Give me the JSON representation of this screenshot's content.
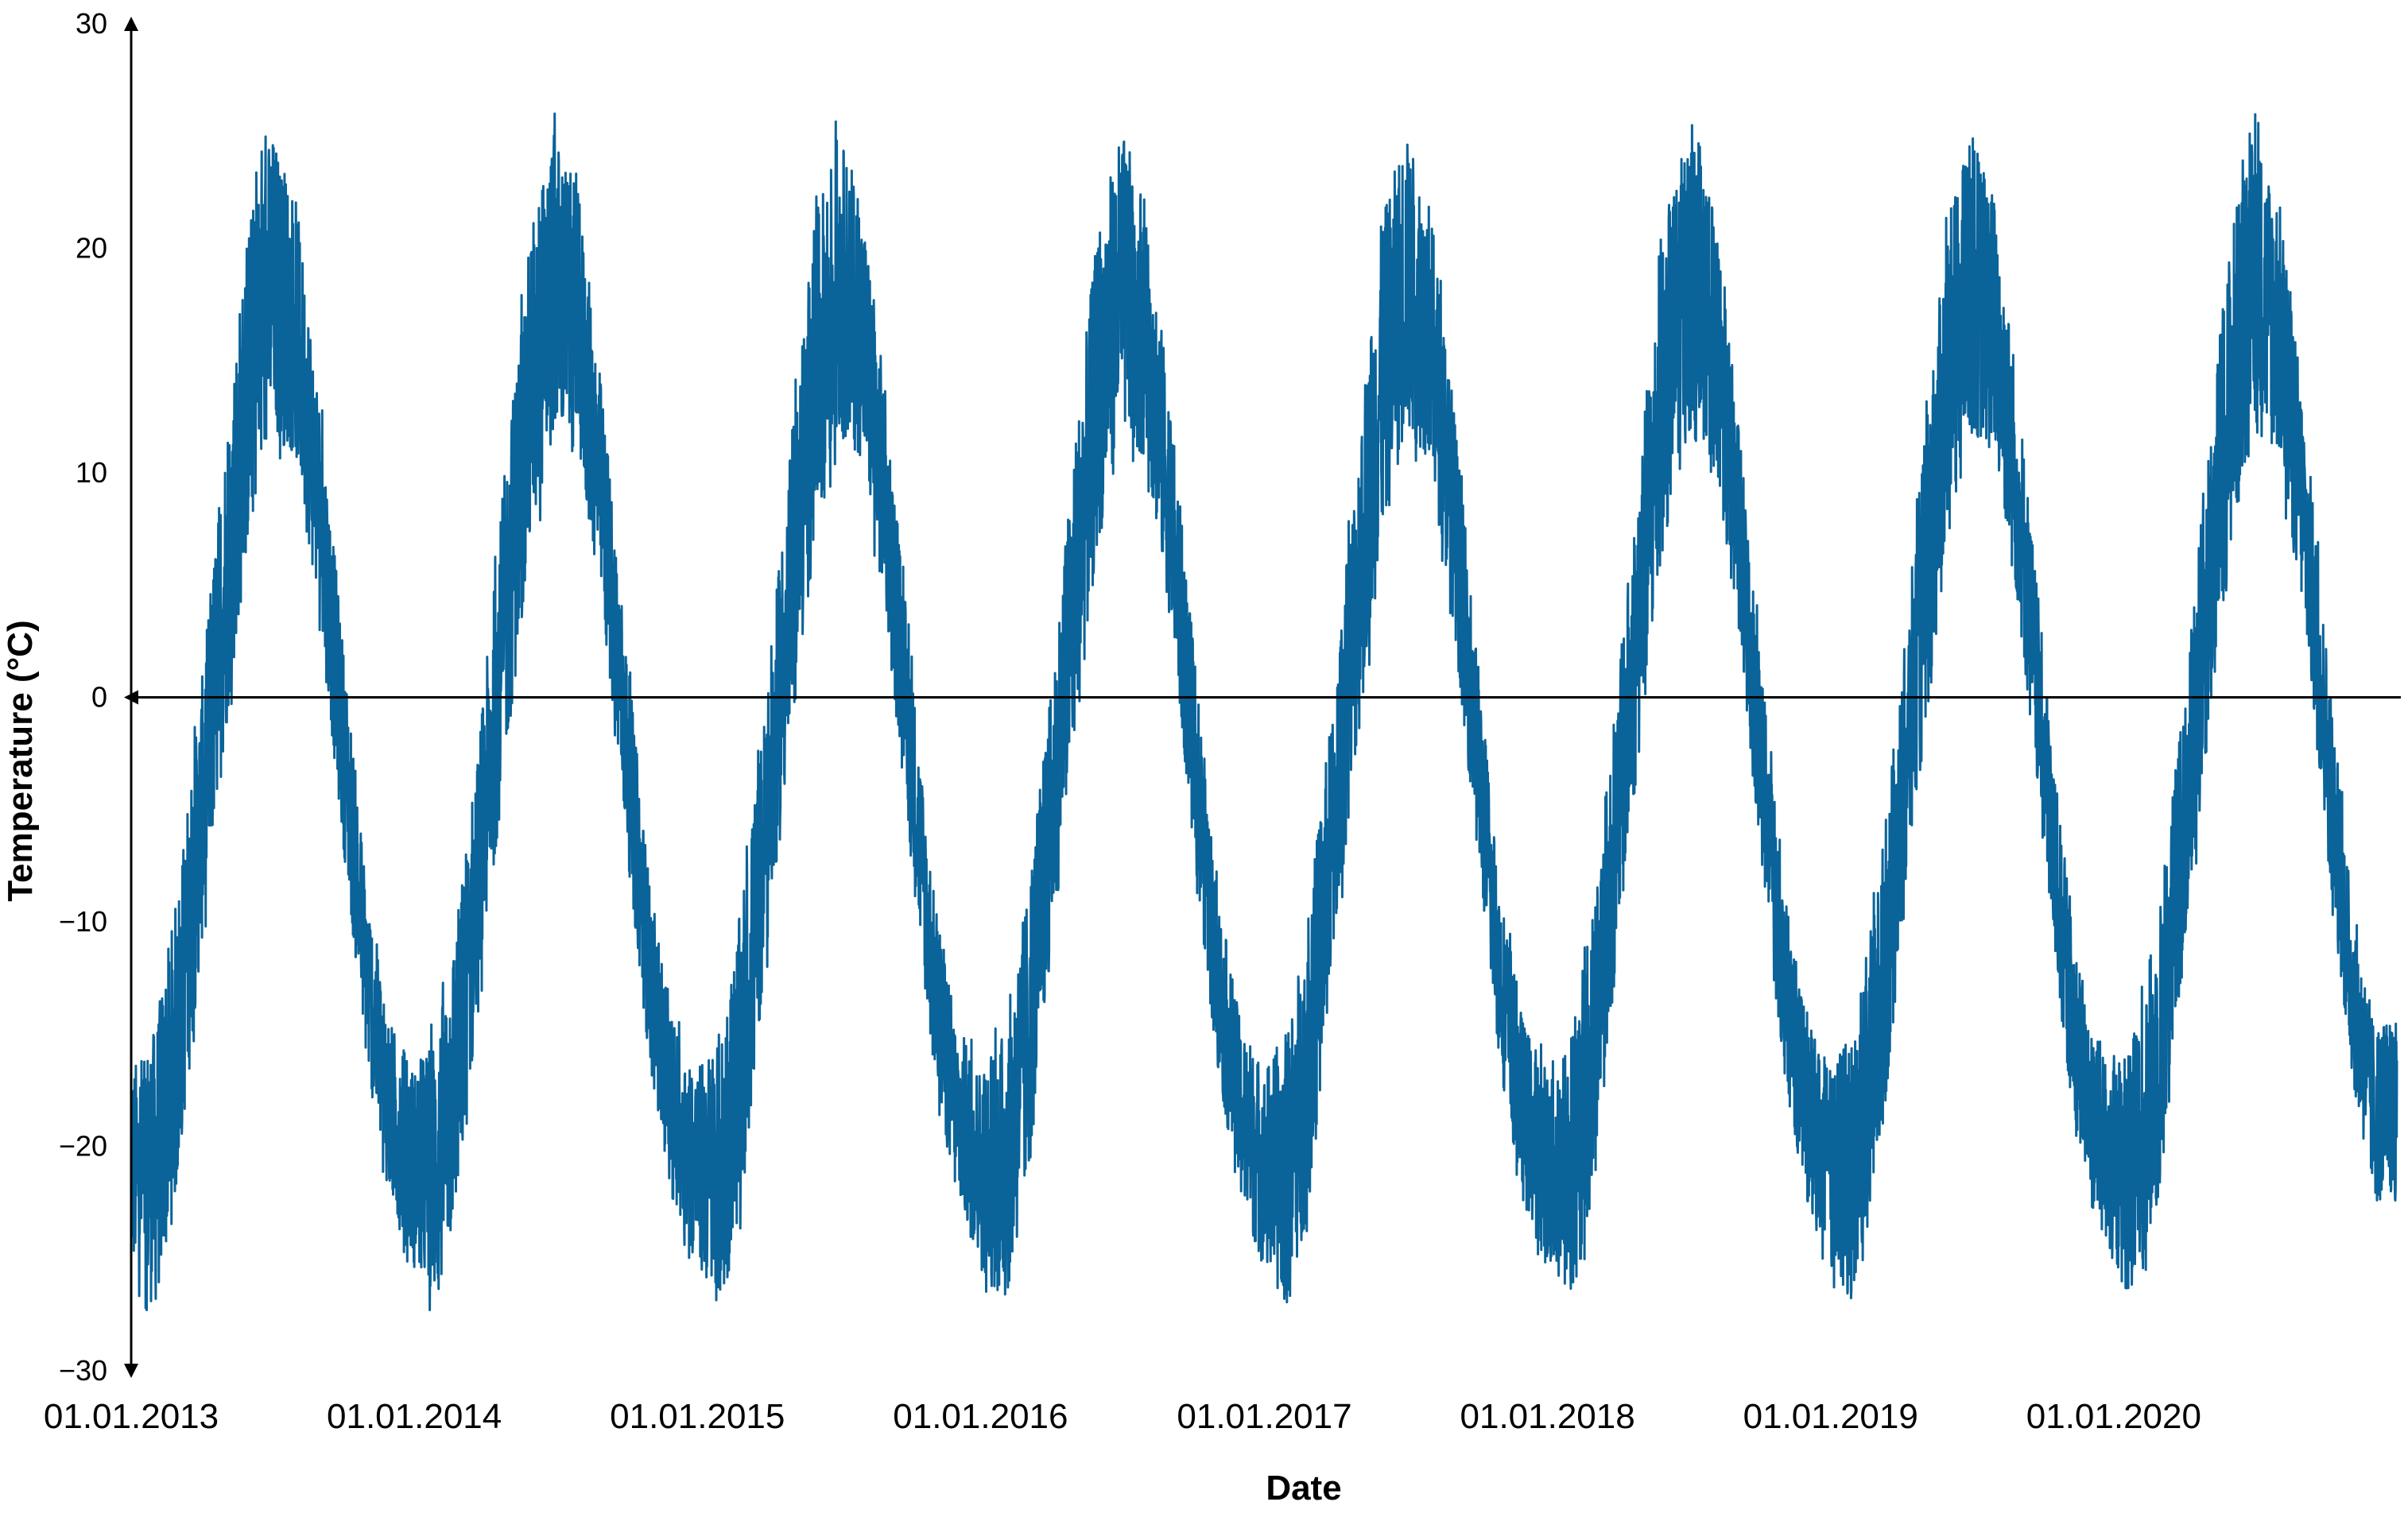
{
  "chart_data": {
    "type": "line",
    "title": "",
    "xlabel": "Date",
    "ylabel": "Temperature (°C)",
    "ylim": [
      -30,
      30
    ],
    "xlim": [
      "2013-01-01",
      "2020-12-31"
    ],
    "y_ticks": [
      {
        "value": 30,
        "label": "30"
      },
      {
        "value": 20,
        "label": "20"
      },
      {
        "value": 10,
        "label": "10"
      },
      {
        "value": 0,
        "label": "0"
      },
      {
        "value": -10,
        "label": "−10"
      },
      {
        "value": -20,
        "label": "−20"
      },
      {
        "value": -30,
        "label": "−30"
      }
    ],
    "x_ticks": [
      {
        "value": "2013-01-01",
        "label": "01.01.2013"
      },
      {
        "value": "2014-01-01",
        "label": "01.01.2014"
      },
      {
        "value": "2015-01-01",
        "label": "01.01.2015"
      },
      {
        "value": "2016-01-01",
        "label": "01.01.2016"
      },
      {
        "value": "2017-01-01",
        "label": "01.01.2017"
      },
      {
        "value": "2018-01-01",
        "label": "01.01.2018"
      },
      {
        "value": "2019-01-01",
        "label": "01.01.2019"
      },
      {
        "value": "2020-01-01",
        "label": "01.01.2020"
      }
    ],
    "grid": false,
    "legend": "none",
    "series": [
      {
        "color": "#0a6399",
        "x": [
          "2013-01-01",
          "2013-02-01",
          "2013-03-01",
          "2013-04-01",
          "2013-05-01",
          "2013-06-01",
          "2013-07-01",
          "2013-08-01",
          "2013-09-01",
          "2013-10-01",
          "2013-11-01",
          "2013-12-01",
          "2014-01-01",
          "2014-02-01",
          "2014-03-01",
          "2014-04-01",
          "2014-05-01",
          "2014-06-01",
          "2014-07-01",
          "2014-08-01",
          "2014-09-01",
          "2014-10-01",
          "2014-11-01",
          "2014-12-01",
          "2015-01-01",
          "2015-02-01",
          "2015-03-01",
          "2015-04-01",
          "2015-05-01",
          "2015-06-01",
          "2015-07-01",
          "2015-08-01",
          "2015-09-01",
          "2015-10-01",
          "2015-11-01",
          "2015-12-01",
          "2016-01-01",
          "2016-02-01",
          "2016-03-01",
          "2016-04-01",
          "2016-05-01",
          "2016-06-01",
          "2016-07-01",
          "2016-08-01",
          "2016-09-01",
          "2016-10-01",
          "2016-11-01",
          "2016-12-01",
          "2017-01-01",
          "2017-02-01",
          "2017-03-01",
          "2017-04-01",
          "2017-05-01",
          "2017-06-01",
          "2017-07-01",
          "2017-08-01",
          "2017-09-01",
          "2017-10-01",
          "2017-11-01",
          "2017-12-01",
          "2018-01-01",
          "2018-02-01",
          "2018-03-01",
          "2018-04-01",
          "2018-05-01",
          "2018-06-01",
          "2018-07-01",
          "2018-08-01",
          "2018-09-01",
          "2018-10-01",
          "2018-11-01",
          "2018-12-01",
          "2019-01-01",
          "2019-02-01",
          "2019-03-01",
          "2019-04-01",
          "2019-05-01",
          "2019-06-01",
          "2019-07-01",
          "2019-08-01",
          "2019-09-01",
          "2019-10-01",
          "2019-11-01",
          "2019-12-01",
          "2020-01-01",
          "2020-02-01",
          "2020-03-01",
          "2020-04-01",
          "2020-05-01",
          "2020-06-01",
          "2020-07-01",
          "2020-08-01",
          "2020-09-01",
          "2020-10-01",
          "2020-11-01",
          "2020-12-01",
          "2020-12-31"
        ],
        "y_max": [
          -16,
          -14,
          -8,
          1,
          12,
          22,
          26,
          23,
          14,
          3,
          -8,
          -14,
          -16,
          -14,
          -8,
          1,
          12,
          22,
          26,
          23,
          14,
          3,
          -8,
          -14,
          -16,
          -14,
          -8,
          1,
          12,
          22,
          26,
          23,
          14,
          3,
          -8,
          -14,
          -16,
          -14,
          -8,
          1,
          12,
          22,
          26,
          23,
          14,
          3,
          -8,
          -14,
          -16,
          -14,
          -8,
          1,
          12,
          22,
          26,
          23,
          14,
          3,
          -8,
          -14,
          -16,
          -14,
          -8,
          1,
          12,
          22,
          26,
          23,
          14,
          3,
          -8,
          -14,
          -16,
          -14,
          -8,
          1,
          12,
          22,
          26,
          23,
          14,
          3,
          -8,
          -14,
          -16,
          -14,
          -8,
          1,
          12,
          22,
          26,
          23,
          14,
          3,
          -8,
          -14,
          -14
        ],
        "y_min": [
          -26,
          -28,
          -23,
          -12,
          -3,
          6,
          11,
          10,
          3,
          -7,
          -17,
          -23,
          -26,
          -28,
          -23,
          -12,
          -3,
          6,
          11,
          10,
          3,
          -7,
          -17,
          -23,
          -26,
          -28,
          -23,
          -12,
          -3,
          6,
          11,
          10,
          3,
          -7,
          -17,
          -23,
          -26,
          -28,
          -23,
          -12,
          -3,
          6,
          11,
          10,
          3,
          -7,
          -17,
          -23,
          -26,
          -28,
          -23,
          -12,
          -3,
          6,
          11,
          10,
          3,
          -7,
          -17,
          -23,
          -26,
          -28,
          -23,
          -12,
          -3,
          6,
          11,
          10,
          3,
          -7,
          -17,
          -23,
          -26,
          -28,
          -23,
          -12,
          -3,
          6,
          11,
          10,
          3,
          -7,
          -17,
          -23,
          -26,
          -28,
          -23,
          -12,
          -3,
          6,
          11,
          10,
          3,
          -7,
          -17,
          -23,
          -23
        ]
      }
    ]
  }
}
